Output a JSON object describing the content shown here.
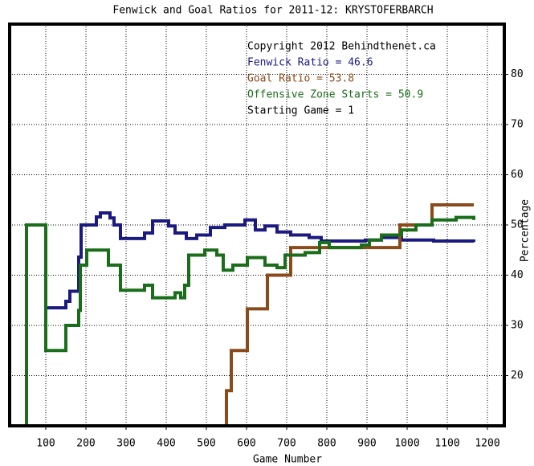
{
  "chart_data": {
    "type": "line",
    "drawstyle": "steps-post",
    "title": "Fenwick and Goal Ratios for 2011-12: KRYSTOFERBARCH",
    "xlabel": "Game Number",
    "ylabel": "Percentage",
    "annotations": [
      {
        "text": "Copyright 2012 Behindthenet.ca",
        "color": "#000000"
      },
      {
        "text": "Fenwick Ratio = 46.6",
        "color": "#1a1a80"
      },
      {
        "text": "Goal Ratio = 53.8",
        "color": "#8b4a1a"
      },
      {
        "text": "Offensive Zone Starts = 50.9",
        "color": "#1a6e1a"
      },
      {
        "text": "Starting Game = 1",
        "color": "#000000"
      }
    ],
    "xlim": [
      10,
      1242
    ],
    "ylim": [
      10,
      90
    ],
    "xticks": [
      100,
      200,
      300,
      400,
      500,
      600,
      700,
      800,
      900,
      1000,
      1100,
      1200
    ],
    "yticks": [
      20,
      30,
      40,
      50,
      60,
      70,
      80
    ],
    "grid": true,
    "series": [
      {
        "color": "#1a1a80",
        "x": [
          102,
          150,
          160,
          182,
          188,
          226,
          236,
          260,
          270,
          286,
          346,
          366,
          406,
          422,
          450,
          476,
          510,
          546,
          596,
          622,
          646,
          676,
          710,
          756,
          786,
          896,
          936,
          986,
          1066,
          1166
        ],
        "values": [
          33.5,
          34.8,
          36.8,
          43.6,
          50,
          51.6,
          52.4,
          51.4,
          50,
          47.3,
          48.4,
          50.8,
          49.8,
          48.4,
          47.3,
          48,
          49.5,
          50,
          51,
          49,
          49.8,
          48.6,
          48,
          47.5,
          46.8,
          47,
          47.5,
          47,
          46.8,
          46.6
        ]
      },
      {
        "color": "#8b4a1a",
        "x": [
          540,
          550,
          562,
          602,
          652,
          710,
          982,
          1062,
          1166
        ],
        "values": [
          10,
          17,
          25,
          33.3,
          40,
          45.5,
          50,
          54,
          54
        ]
      },
      {
        "color": "#1a6e1a",
        "x": [
          50,
          52,
          100,
          150,
          182,
          186,
          202,
          230,
          256,
          286,
          346,
          366,
          422,
          436,
          446,
          456,
          496,
          526,
          542,
          566,
          602,
          646,
          676,
          696,
          746,
          782,
          806,
          886,
          906,
          936,
          986,
          1022,
          1062,
          1122,
          1166
        ],
        "values": [
          10,
          50,
          25,
          30,
          33,
          42,
          45,
          45,
          42,
          37,
          38,
          35.5,
          36.5,
          35.5,
          38,
          44,
          45,
          44,
          41,
          42,
          43.5,
          42,
          41.5,
          44,
          44.5,
          46.5,
          45.5,
          46,
          47,
          48,
          49,
          50,
          51,
          51.5,
          51
        ]
      }
    ]
  }
}
